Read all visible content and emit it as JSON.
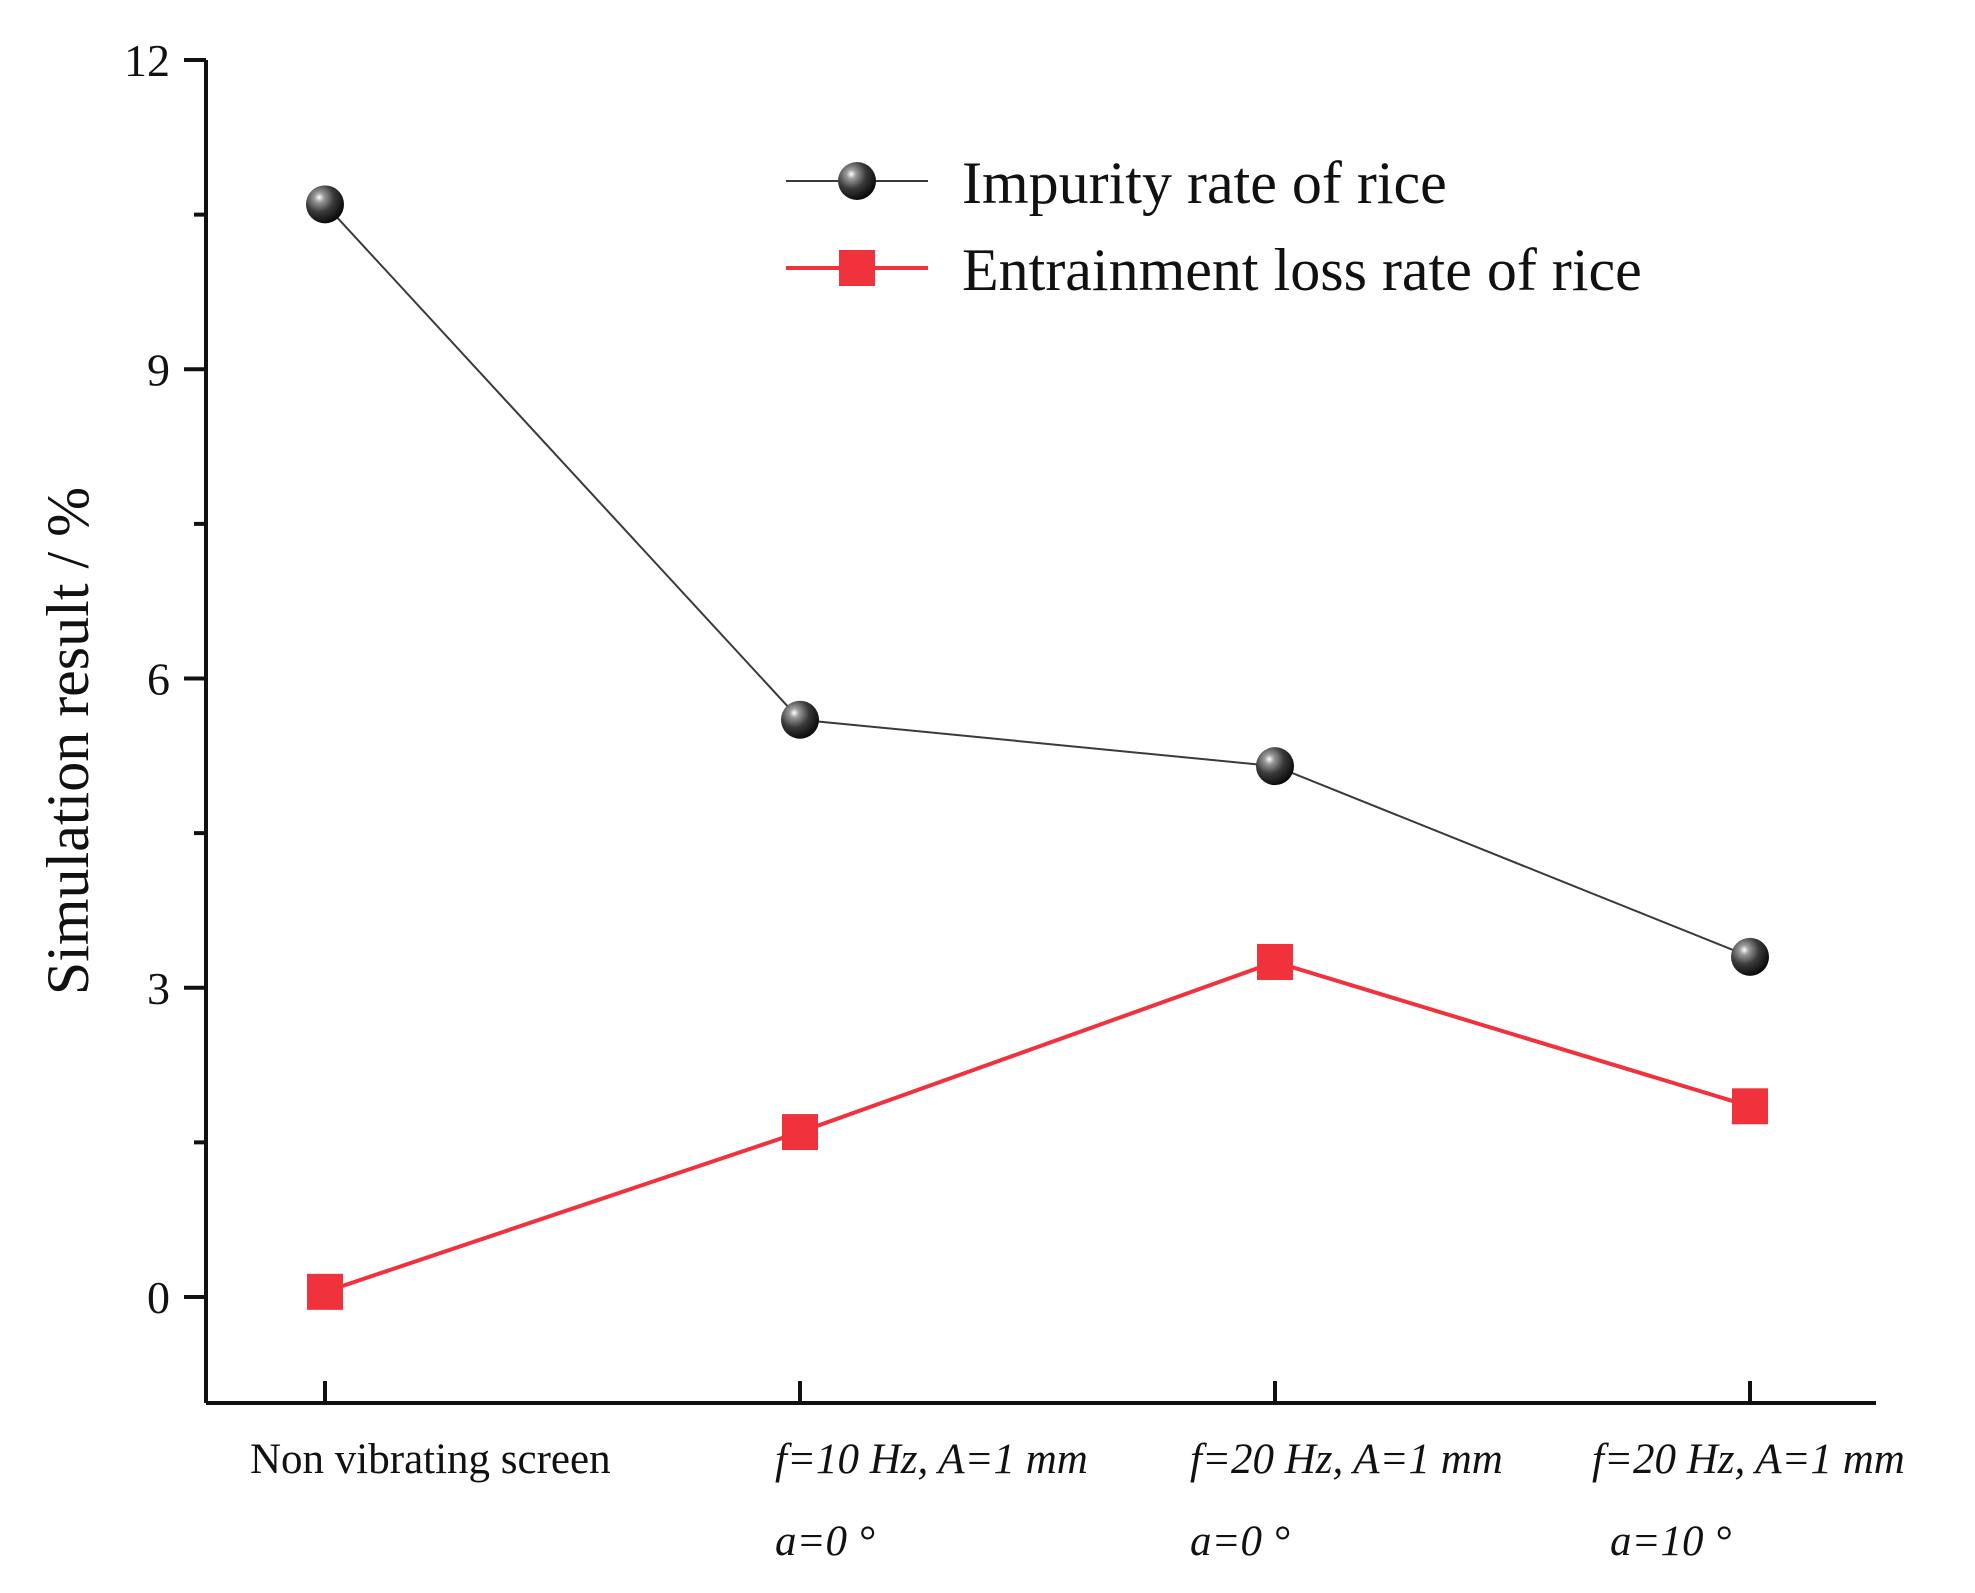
{
  "chart_data": {
    "type": "line",
    "title": "",
    "xlabel": "",
    "ylabel": "Simulation result / %",
    "ylim": [
      -1,
      12
    ],
    "yticks": [
      0,
      3,
      6,
      9,
      12
    ],
    "y_minor_step": 1.5,
    "grid": false,
    "legend_position": "top-right",
    "categories": [
      {
        "line1": "Non vibrating screen",
        "line2": "",
        "italic": false
      },
      {
        "line1": "f=10 Hz, A=1 mm",
        "line2": "a=0 °",
        "italic": true
      },
      {
        "line1": "f=20 Hz, A=1 mm",
        "line2": "a=0 °",
        "italic": true
      },
      {
        "line1": "f=20 Hz, A=1 mm",
        "line2": "a=10 °",
        "italic": true
      }
    ],
    "series": [
      {
        "name": "Impurity rate of rice",
        "marker": "sphere",
        "color": "#3a3a3a",
        "values": [
          10.6,
          5.6,
          5.15,
          3.3
        ]
      },
      {
        "name": "Entrainment loss rate of rice",
        "marker": "square",
        "color": "#f0323c",
        "values": [
          0.05,
          1.6,
          3.25,
          1.85
        ]
      }
    ]
  }
}
